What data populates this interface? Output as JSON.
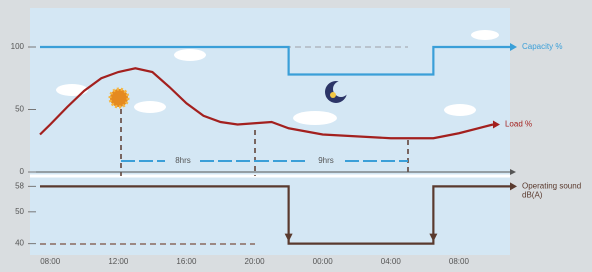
{
  "chart_data": [
    {
      "type": "line",
      "ylim": [
        0,
        100
      ],
      "yticks": [
        0,
        50,
        100
      ],
      "xlim": [
        7.4,
        35
      ],
      "annotations": [
        "8hrs",
        "9hrs"
      ],
      "series": [
        {
          "name": "Capacity %",
          "color": "#3a9fd8",
          "x": [
            7.4,
            22,
            22,
            30.5,
            30.5,
            35
          ],
          "values": [
            100,
            100,
            78,
            78,
            100,
            100
          ]
        },
        {
          "name": "Load %",
          "color": "#a3201e",
          "x": [
            7.4,
            8,
            9,
            10,
            11,
            12,
            13,
            14,
            15,
            16,
            17,
            18,
            19,
            20,
            21,
            22,
            24,
            28,
            30.5,
            32,
            34
          ],
          "values": [
            30,
            38,
            52,
            65,
            75,
            80,
            83,
            80,
            68,
            55,
            45,
            40,
            38,
            39,
            40,
            35,
            30,
            27,
            27,
            31,
            38
          ]
        }
      ]
    },
    {
      "type": "line",
      "ylim": [
        38,
        60
      ],
      "yticks": [
        40,
        50,
        58
      ],
      "xlim": [
        7.4,
        35
      ],
      "xticks": [
        {
          "value": 8,
          "label": "08:00"
        },
        {
          "value": 12,
          "label": "12:00"
        },
        {
          "value": 16,
          "label": "16:00"
        },
        {
          "value": 20,
          "label": "20:00"
        },
        {
          "value": 24,
          "label": "00:00"
        },
        {
          "value": 28,
          "label": "04:00"
        },
        {
          "value": 32,
          "label": "08:00"
        }
      ],
      "series": [
        {
          "name": "Operating sound dB(A)",
          "color": "#5a3a2e",
          "x": [
            7.4,
            22,
            22,
            30.5,
            30.5,
            35
          ],
          "values": [
            58,
            58,
            40,
            40,
            58,
            58
          ]
        }
      ]
    }
  ]
}
